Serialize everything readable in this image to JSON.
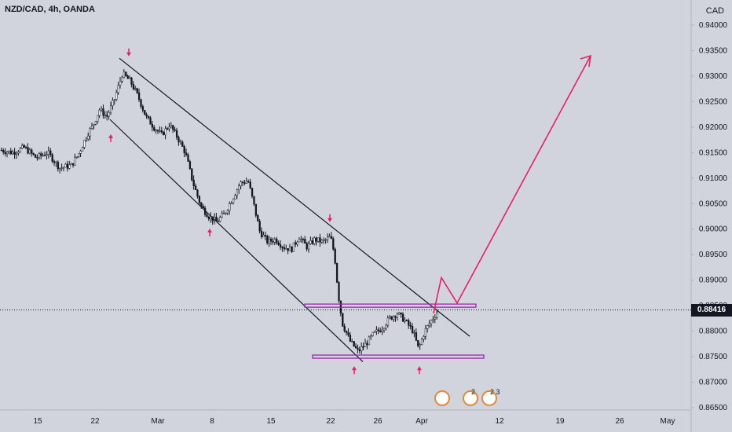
{
  "header": {
    "symbol_line": "NZD/CAD, 4h, OANDA"
  },
  "axis": {
    "currency": "CAD"
  },
  "current_price": {
    "label": "0.88416",
    "value": 0.88416
  },
  "colors": {
    "background": "#d1d4dc",
    "candle": "#131722",
    "annotation": "#e91e63",
    "zone": "#9c27b0",
    "text": "#131722",
    "price_tag_bg": "#131722"
  },
  "events": [
    {
      "name": "nz-flag-icon",
      "count": ""
    },
    {
      "name": "ca-flag-icon",
      "count": "2"
    },
    {
      "name": "nz-flag-icon",
      "count": "2 3"
    }
  ],
  "chart_data": {
    "type": "candlestick",
    "title": "NZD/CAD, 4h, OANDA",
    "ylabel": "CAD",
    "y_ticks": [
      "0.94000",
      "0.93500",
      "0.93000",
      "0.92500",
      "0.92000",
      "0.91500",
      "0.91000",
      "0.90500",
      "0.90000",
      "0.89500",
      "0.89000",
      "0.88500",
      "0.88000",
      "0.87500",
      "0.87000",
      "0.86500"
    ],
    "x_ticks": [
      "15",
      "22",
      "Mar",
      "8",
      "15",
      "22",
      "26",
      "Apr",
      "12",
      "19",
      "26",
      "May"
    ],
    "ylim": [
      0.865,
      0.9425
    ],
    "grid": false,
    "price_path": [
      [
        0,
        0.9155
      ],
      [
        15,
        0.915
      ],
      [
        30,
        0.916
      ],
      [
        45,
        0.914
      ],
      [
        60,
        0.915
      ],
      [
        75,
        0.912
      ],
      [
        90,
        0.9125
      ],
      [
        100,
        0.915
      ],
      [
        110,
        0.9185
      ],
      [
        118,
        0.9205
      ],
      [
        126,
        0.9235
      ],
      [
        135,
        0.922
      ],
      [
        145,
        0.9255
      ],
      [
        155,
        0.9305
      ],
      [
        165,
        0.929
      ],
      [
        175,
        0.926
      ],
      [
        185,
        0.922
      ],
      [
        195,
        0.92
      ],
      [
        205,
        0.9185
      ],
      [
        215,
        0.9205
      ],
      [
        225,
        0.918
      ],
      [
        235,
        0.915
      ],
      [
        245,
        0.909
      ],
      [
        255,
        0.9045
      ],
      [
        265,
        0.9025
      ],
      [
        275,
        0.9015
      ],
      [
        285,
        0.903
      ],
      [
        295,
        0.906
      ],
      [
        305,
        0.909
      ],
      [
        315,
        0.9095
      ],
      [
        322,
        0.905
      ],
      [
        330,
        0.8995
      ],
      [
        340,
        0.8975
      ],
      [
        350,
        0.898
      ],
      [
        360,
        0.8965
      ],
      [
        370,
        0.896
      ],
      [
        380,
        0.8985
      ],
      [
        390,
        0.8965
      ],
      [
        400,
        0.898
      ],
      [
        410,
        0.8975
      ],
      [
        420,
        0.8985
      ],
      [
        425,
        0.895
      ],
      [
        430,
        0.887
      ],
      [
        435,
        0.8815
      ],
      [
        445,
        0.878
      ],
      [
        455,
        0.876
      ],
      [
        465,
        0.8775
      ],
      [
        475,
        0.8795
      ],
      [
        485,
        0.8805
      ],
      [
        495,
        0.8825
      ],
      [
        505,
        0.8835
      ],
      [
        515,
        0.882
      ],
      [
        525,
        0.88
      ],
      [
        532,
        0.8765
      ],
      [
        540,
        0.88
      ],
      [
        550,
        0.8825
      ],
      [
        557,
        0.884
      ]
    ],
    "trend_lines": [
      {
        "name": "channel-upper-line",
        "points": [
          [
            152,
            0.9335
          ],
          [
            598,
            0.879
          ]
        ]
      },
      {
        "name": "channel-lower-line",
        "points": [
          [
            140,
            0.9215
          ],
          [
            462,
            0.874
          ]
        ]
      }
    ],
    "zones": [
      {
        "name": "resistance-zone",
        "price": 0.885,
        "x1": 388,
        "x2": 606
      },
      {
        "name": "support-zone",
        "price": 0.875,
        "x1": 398,
        "x2": 616
      }
    ],
    "projection": {
      "name": "projected-path-line",
      "points": [
        [
          552,
          0.8835
        ],
        [
          562,
          0.8905
        ],
        [
          582,
          0.8855
        ],
        [
          752,
          0.934
        ]
      ],
      "arrow_head": [
        752,
        0.934
      ]
    },
    "markers": [
      {
        "name": "swing-high-marker",
        "dir": "down",
        "x": 164,
        "price": 0.9345
      },
      {
        "name": "swing-low-marker",
        "dir": "up",
        "x": 141,
        "price": 0.918
      },
      {
        "name": "swing-low-marker",
        "dir": "up",
        "x": 267,
        "price": 0.8995
      },
      {
        "name": "swing-high-marker",
        "dir": "down",
        "x": 420,
        "price": 0.902
      },
      {
        "name": "swing-low-marker",
        "dir": "up",
        "x": 451,
        "price": 0.8725
      },
      {
        "name": "swing-low-marker",
        "dir": "up",
        "x": 534,
        "price": 0.8725
      }
    ]
  }
}
